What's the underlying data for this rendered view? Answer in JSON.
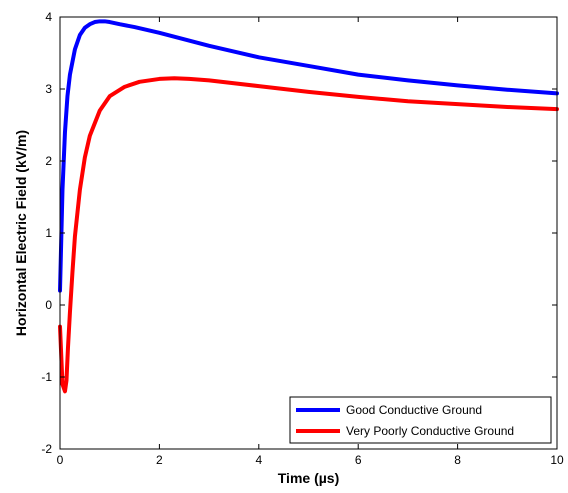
{
  "chart_data": {
    "type": "line",
    "xlabel": "Time (µs)",
    "ylabel": "Horizontal Electric Field (kV/m)",
    "xlim": [
      0,
      10
    ],
    "ylim": [
      -2,
      4
    ],
    "x_ticks": [
      "0",
      "2",
      "4",
      "6",
      "8",
      "10"
    ],
    "y_ticks": [
      "-2",
      "-1",
      "0",
      "1",
      "2",
      "3",
      "4"
    ],
    "grid": false,
    "legend_position": "bottom-right",
    "series": [
      {
        "name": "Good Conductive Ground",
        "color": "#0000ff",
        "x": [
          0.0,
          0.05,
          0.1,
          0.15,
          0.2,
          0.3,
          0.4,
          0.5,
          0.6,
          0.7,
          0.8,
          0.9,
          1.0,
          1.2,
          1.5,
          2.0,
          2.5,
          3.0,
          3.5,
          4.0,
          5.0,
          6.0,
          7.0,
          8.0,
          9.0,
          10.0
        ],
        "y": [
          0.2,
          1.6,
          2.4,
          2.9,
          3.2,
          3.55,
          3.75,
          3.85,
          3.9,
          3.93,
          3.94,
          3.94,
          3.93,
          3.9,
          3.86,
          3.78,
          3.69,
          3.6,
          3.52,
          3.44,
          3.32,
          3.2,
          3.12,
          3.05,
          2.99,
          2.94
        ]
      },
      {
        "name": "Very Poorly Conductive Ground",
        "color": "#ff0000",
        "x": [
          0.0,
          0.05,
          0.1,
          0.13,
          0.16,
          0.2,
          0.25,
          0.3,
          0.4,
          0.5,
          0.6,
          0.8,
          1.0,
          1.3,
          1.6,
          2.0,
          2.3,
          2.6,
          3.0,
          3.5,
          4.0,
          5.0,
          6.0,
          7.0,
          8.0,
          9.0,
          10.0
        ],
        "y": [
          -0.3,
          -1.1,
          -1.2,
          -1.05,
          -0.6,
          -0.1,
          0.45,
          0.95,
          1.6,
          2.05,
          2.35,
          2.7,
          2.9,
          3.03,
          3.1,
          3.14,
          3.15,
          3.14,
          3.12,
          3.08,
          3.04,
          2.96,
          2.89,
          2.83,
          2.79,
          2.75,
          2.72
        ]
      }
    ]
  }
}
